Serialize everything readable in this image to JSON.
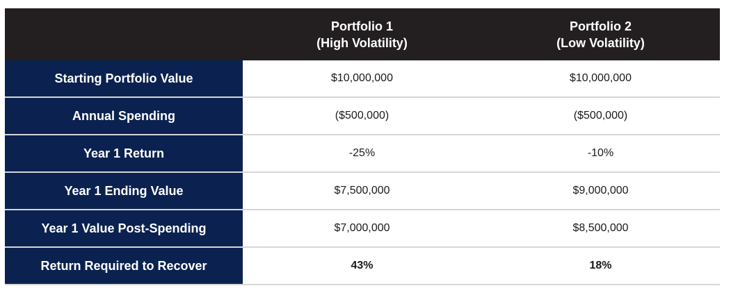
{
  "header": {
    "col1_line1": "Portfolio 1",
    "col1_line2": "(High Volatility)",
    "col2_line1": "Portfolio 2",
    "col2_line2": "(Low Volatility)"
  },
  "rows": [
    {
      "label": "Starting Portfolio Value",
      "p1": "$10,000,000",
      "p2": "$10,000,000"
    },
    {
      "label": "Annual Spending",
      "p1": "($500,000)",
      "p2": "($500,000)"
    },
    {
      "label": "Year 1 Return",
      "p1": "-25%",
      "p2": "-10%"
    },
    {
      "label": "Year 1 Ending Value",
      "p1": "$7,500,000",
      "p2": "$9,000,000"
    },
    {
      "label": "Year 1 Value Post-Spending",
      "p1": "$7,000,000",
      "p2": "$8,500,000"
    },
    {
      "label": "Return Required to Recover",
      "p1": "43%",
      "p2": "18%"
    }
  ],
  "colors": {
    "header_bg": "#231f20",
    "label_bg": "#0b2250",
    "row_divider": "#d6d6d6"
  }
}
